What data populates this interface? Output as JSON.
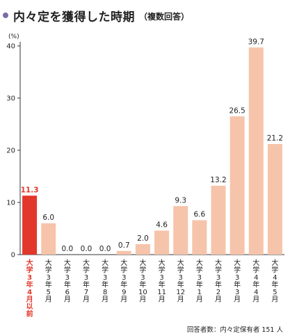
{
  "header": {
    "title": "内々定を獲得した時期",
    "subtitle": "（複数回答）"
  },
  "footnote": "回答者数：内々定保有者 151 人",
  "colors": {
    "highlight_bar": "#e2372b",
    "bar": "#f6c4aa",
    "highlight_text": "#e2372b",
    "title_bullet": "#7d6aa8"
  },
  "chart_data": {
    "type": "bar",
    "unit_label": "(%)",
    "ylim": [
      0,
      40
    ],
    "yticks": [
      0,
      10,
      20,
      30,
      40
    ],
    "grid": false,
    "categories": [
      "大学3年4月以前",
      "大学3年5月",
      "大学3年6月",
      "大学3年7月",
      "大学3年8月",
      "大学3年9月",
      "大学3年10月",
      "大学3年11月",
      "大学3年12月",
      "大学3年1月",
      "大学3年2月",
      "大学3年3月",
      "大学4年4月",
      "大学4年5月"
    ],
    "values": [
      11.3,
      6.0,
      0.0,
      0.0,
      0.0,
      0.7,
      2.0,
      4.6,
      9.3,
      6.6,
      13.2,
      26.5,
      39.7,
      21.2
    ],
    "value_labels": [
      "11.3",
      "6.0",
      "0.0",
      "0.0",
      "0.0",
      "0.7",
      "2.0",
      "4.6",
      "9.3",
      "6.6",
      "13.2",
      "26.5",
      "39.7",
      "21.2"
    ],
    "highlight_index": 0
  }
}
